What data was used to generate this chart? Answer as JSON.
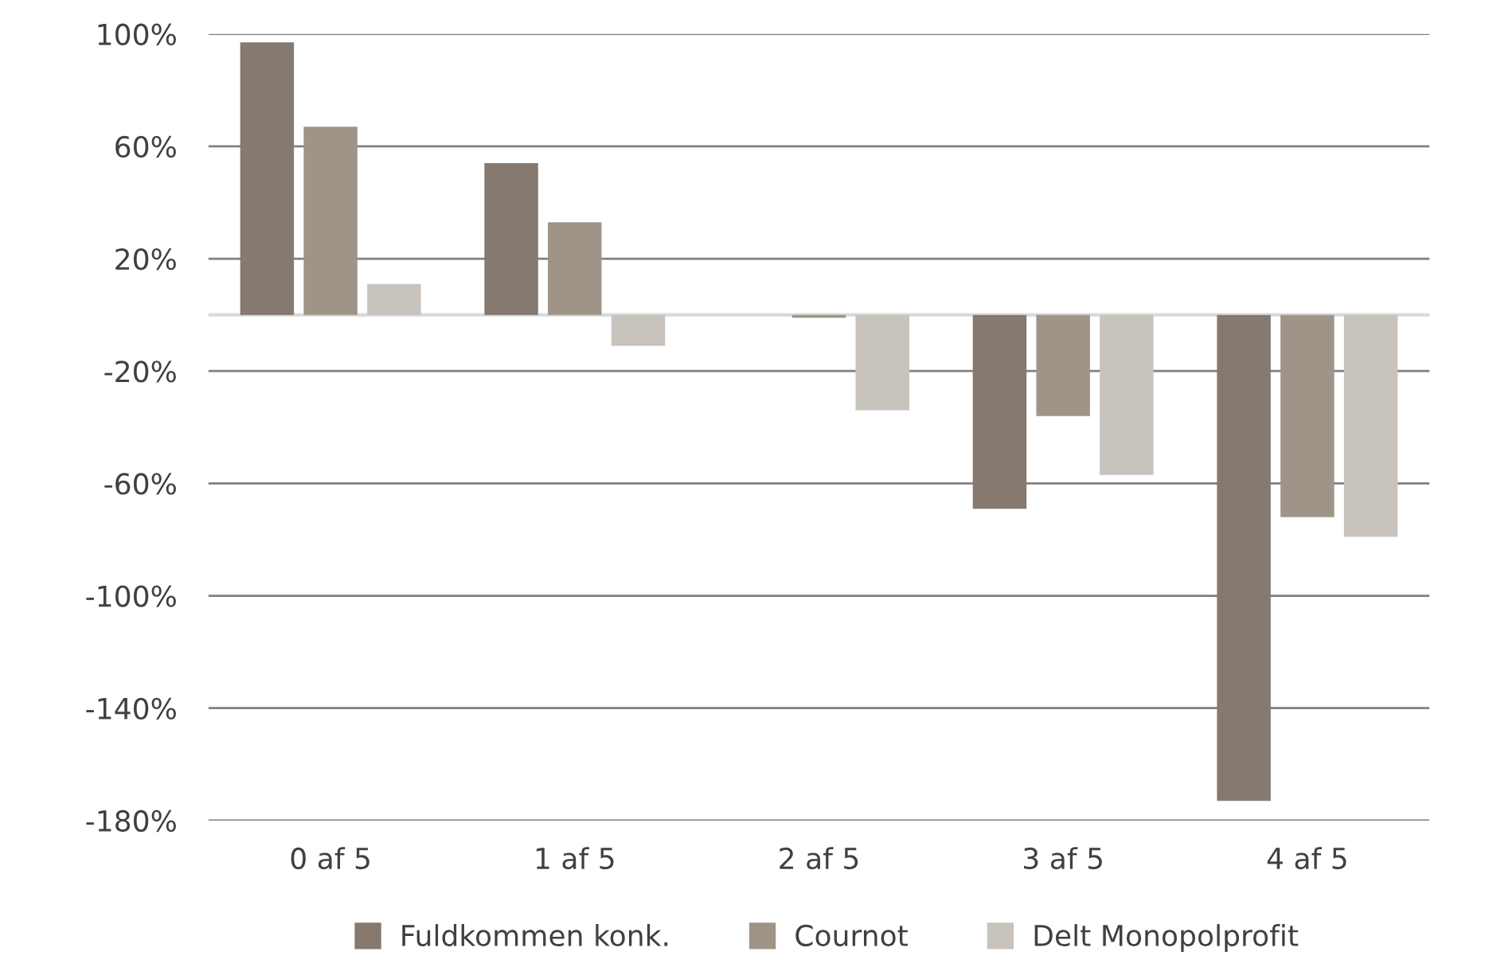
{
  "chart_data": {
    "type": "bar",
    "categories": [
      "0 af 5",
      "1 af 5",
      "2 af 5",
      "3 af 5",
      "4 af 5"
    ],
    "series": [
      {
        "name": "Fuldkommen konk.",
        "color": "#857970",
        "values": [
          97,
          54,
          0,
          -69,
          -173
        ]
      },
      {
        "name": "Cournot",
        "color": "#a09488",
        "values": [
          67,
          33,
          -1,
          -36,
          -72
        ]
      },
      {
        "name": "Delt Monopolprofit",
        "color": "#c9c3be",
        "values": [
          11,
          -11,
          -34,
          -57,
          -79
        ]
      }
    ],
    "ylim": [
      -180,
      100
    ],
    "yticks": [
      {
        "value": 100,
        "label": "100%"
      },
      {
        "value": 60,
        "label": "60%"
      },
      {
        "value": 20,
        "label": "20%"
      },
      {
        "value": -20,
        "label": "-20%"
      },
      {
        "value": -60,
        "label": "-60%"
      },
      {
        "value": -100,
        "label": "-100%"
      },
      {
        "value": -140,
        "label": "-140%"
      },
      {
        "value": -180,
        "label": "-180%"
      }
    ],
    "grid": "y",
    "legend": "bottom",
    "marker": "square"
  }
}
